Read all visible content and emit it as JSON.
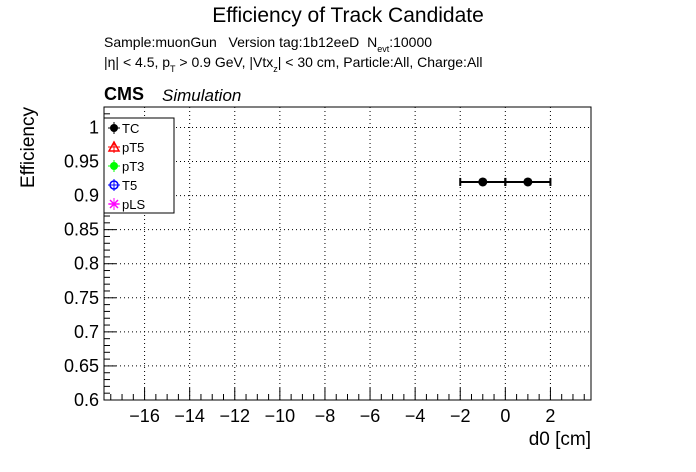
{
  "chart_data": {
    "type": "scatter",
    "title": "Efficiency of Track Candidate",
    "info": {
      "sample_line": {
        "sample": "Sample:muonGun",
        "version": "Version tag:1b12eeD",
        "nevt_N": "N",
        "nevt_sub": "evt",
        "nevt_value": ":10000"
      },
      "cuts_line": {
        "eta_part": "|η| < 4.5, p",
        "pt_sub": "T",
        "pt_part": " > 0.9 GeV, |Vtx",
        "vtx_sub": "z",
        "rest": "| < 30 cm, Particle:All, Charge:All"
      }
    },
    "cms_label": "CMS",
    "simulation_label": "Simulation",
    "xlabel": "d0 [cm]",
    "ylabel": "Efficiency",
    "xlim": [
      -17.8,
      3.8
    ],
    "ylim": [
      0.6,
      1.03
    ],
    "xticks": [
      -16,
      -14,
      -12,
      -10,
      -8,
      -6,
      -4,
      -2,
      0,
      2
    ],
    "xtick_labels": [
      "−16",
      "−14",
      "−12",
      "−10",
      "−8",
      "−6",
      "−4",
      "−2",
      "0",
      "2"
    ],
    "yticks": [
      0.6,
      0.65,
      0.7,
      0.75,
      0.8,
      0.85,
      0.9,
      0.95,
      1.0
    ],
    "ytick_labels": [
      "0.6",
      "0.65",
      "0.7",
      "0.75",
      "0.8",
      "0.85",
      "0.9",
      "0.95",
      "1"
    ],
    "grid": true,
    "legend": {
      "placement": "top-left",
      "entries": [
        {
          "name": "TC",
          "color": "#000000",
          "marker": "circle-filled"
        },
        {
          "name": "pT5",
          "color": "#ff0000",
          "marker": "triangle-open"
        },
        {
          "name": "pT3",
          "color": "#00ff00",
          "marker": "circle-filled"
        },
        {
          "name": "T5",
          "color": "#0000ff",
          "marker": "circle-open"
        },
        {
          "name": "pLS",
          "color": "#ff00ff",
          "marker": "star"
        }
      ]
    },
    "series": [
      {
        "name": "TC",
        "color": "#000000",
        "points": [
          {
            "x": -1,
            "y": 0.92,
            "xerr": 1
          },
          {
            "x": 1,
            "y": 0.92,
            "xerr": 1
          }
        ]
      }
    ]
  }
}
